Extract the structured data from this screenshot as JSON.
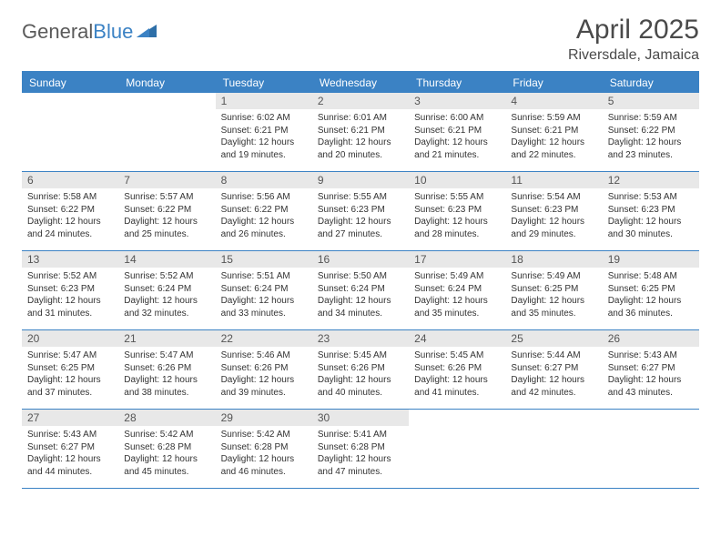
{
  "logo": {
    "text1": "General",
    "text2": "Blue"
  },
  "title": "April 2025",
  "location": "Riversdale, Jamaica",
  "colors": {
    "accent": "#3b82c4",
    "headerText": "#ffffff",
    "dayBarBg": "#e8e8e8",
    "bodyText": "#333333",
    "pageBg": "#ffffff"
  },
  "fonts": {
    "title_size": 30,
    "location_size": 16,
    "weekday_size": 12,
    "daynum_size": 12,
    "body_size": 10
  },
  "weekdays": [
    "Sunday",
    "Monday",
    "Tuesday",
    "Wednesday",
    "Thursday",
    "Friday",
    "Saturday"
  ],
  "weeks": [
    [
      {
        "empty": true
      },
      {
        "empty": true
      },
      {
        "day": "1",
        "sunrise": "6:02 AM",
        "sunset": "6:21 PM",
        "daylight": "12 hours and 19 minutes."
      },
      {
        "day": "2",
        "sunrise": "6:01 AM",
        "sunset": "6:21 PM",
        "daylight": "12 hours and 20 minutes."
      },
      {
        "day": "3",
        "sunrise": "6:00 AM",
        "sunset": "6:21 PM",
        "daylight": "12 hours and 21 minutes."
      },
      {
        "day": "4",
        "sunrise": "5:59 AM",
        "sunset": "6:21 PM",
        "daylight": "12 hours and 22 minutes."
      },
      {
        "day": "5",
        "sunrise": "5:59 AM",
        "sunset": "6:22 PM",
        "daylight": "12 hours and 23 minutes."
      }
    ],
    [
      {
        "day": "6",
        "sunrise": "5:58 AM",
        "sunset": "6:22 PM",
        "daylight": "12 hours and 24 minutes."
      },
      {
        "day": "7",
        "sunrise": "5:57 AM",
        "sunset": "6:22 PM",
        "daylight": "12 hours and 25 minutes."
      },
      {
        "day": "8",
        "sunrise": "5:56 AM",
        "sunset": "6:22 PM",
        "daylight": "12 hours and 26 minutes."
      },
      {
        "day": "9",
        "sunrise": "5:55 AM",
        "sunset": "6:23 PM",
        "daylight": "12 hours and 27 minutes."
      },
      {
        "day": "10",
        "sunrise": "5:55 AM",
        "sunset": "6:23 PM",
        "daylight": "12 hours and 28 minutes."
      },
      {
        "day": "11",
        "sunrise": "5:54 AM",
        "sunset": "6:23 PM",
        "daylight": "12 hours and 29 minutes."
      },
      {
        "day": "12",
        "sunrise": "5:53 AM",
        "sunset": "6:23 PM",
        "daylight": "12 hours and 30 minutes."
      }
    ],
    [
      {
        "day": "13",
        "sunrise": "5:52 AM",
        "sunset": "6:23 PM",
        "daylight": "12 hours and 31 minutes."
      },
      {
        "day": "14",
        "sunrise": "5:52 AM",
        "sunset": "6:24 PM",
        "daylight": "12 hours and 32 minutes."
      },
      {
        "day": "15",
        "sunrise": "5:51 AM",
        "sunset": "6:24 PM",
        "daylight": "12 hours and 33 minutes."
      },
      {
        "day": "16",
        "sunrise": "5:50 AM",
        "sunset": "6:24 PM",
        "daylight": "12 hours and 34 minutes."
      },
      {
        "day": "17",
        "sunrise": "5:49 AM",
        "sunset": "6:24 PM",
        "daylight": "12 hours and 35 minutes."
      },
      {
        "day": "18",
        "sunrise": "5:49 AM",
        "sunset": "6:25 PM",
        "daylight": "12 hours and 35 minutes."
      },
      {
        "day": "19",
        "sunrise": "5:48 AM",
        "sunset": "6:25 PM",
        "daylight": "12 hours and 36 minutes."
      }
    ],
    [
      {
        "day": "20",
        "sunrise": "5:47 AM",
        "sunset": "6:25 PM",
        "daylight": "12 hours and 37 minutes."
      },
      {
        "day": "21",
        "sunrise": "5:47 AM",
        "sunset": "6:26 PM",
        "daylight": "12 hours and 38 minutes."
      },
      {
        "day": "22",
        "sunrise": "5:46 AM",
        "sunset": "6:26 PM",
        "daylight": "12 hours and 39 minutes."
      },
      {
        "day": "23",
        "sunrise": "5:45 AM",
        "sunset": "6:26 PM",
        "daylight": "12 hours and 40 minutes."
      },
      {
        "day": "24",
        "sunrise": "5:45 AM",
        "sunset": "6:26 PM",
        "daylight": "12 hours and 41 minutes."
      },
      {
        "day": "25",
        "sunrise": "5:44 AM",
        "sunset": "6:27 PM",
        "daylight": "12 hours and 42 minutes."
      },
      {
        "day": "26",
        "sunrise": "5:43 AM",
        "sunset": "6:27 PM",
        "daylight": "12 hours and 43 minutes."
      }
    ],
    [
      {
        "day": "27",
        "sunrise": "5:43 AM",
        "sunset": "6:27 PM",
        "daylight": "12 hours and 44 minutes."
      },
      {
        "day": "28",
        "sunrise": "5:42 AM",
        "sunset": "6:28 PM",
        "daylight": "12 hours and 45 minutes."
      },
      {
        "day": "29",
        "sunrise": "5:42 AM",
        "sunset": "6:28 PM",
        "daylight": "12 hours and 46 minutes."
      },
      {
        "day": "30",
        "sunrise": "5:41 AM",
        "sunset": "6:28 PM",
        "daylight": "12 hours and 47 minutes."
      },
      {
        "empty": true
      },
      {
        "empty": true
      },
      {
        "empty": true
      }
    ]
  ],
  "labels": {
    "sunrise": "Sunrise:",
    "sunset": "Sunset:",
    "daylight": "Daylight:"
  }
}
